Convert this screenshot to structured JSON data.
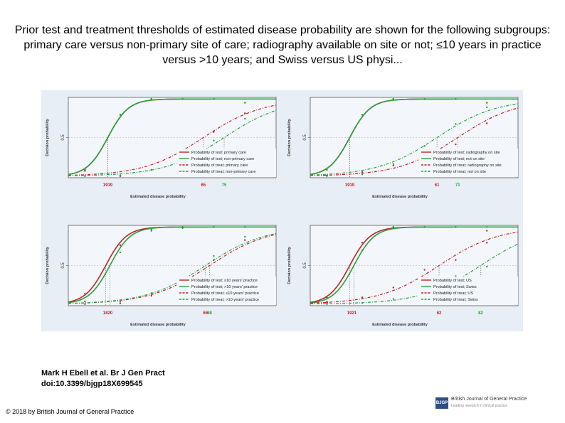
{
  "title": "Prior test and treatment thresholds of estimated disease probability are shown for the following subgroups: primary care versus non-primary site of care; radiography available on site or not; ≤10 years in practice versus >10 years; and Swiss versus US physi...",
  "citation": {
    "line1": "Mark H Ebell et al. Br J Gen Pract",
    "line2": "doi:10.3399/bjgp18X699545"
  },
  "copyright": "© 2018 by British Journal of General Practice",
  "logo": {
    "mark": "BJGP",
    "name": "British Journal of General Practice",
    "tagline": "Leading research in clinical practice"
  },
  "colors": {
    "red": "#c0222a",
    "green": "#27a13a",
    "background": "#e8eef5"
  },
  "chart_data": [
    {
      "type": "line",
      "title": "Primary care versus non-primary site of care",
      "xlabel": "Estimated disease probability",
      "ylabel": "Decision probability",
      "ytick": "0.5",
      "xlim": [
        0,
        100
      ],
      "ylim": [
        0,
        1
      ],
      "threshold_labels": [
        "19",
        "19",
        "65",
        "75"
      ],
      "threshold_values": [
        19,
        19,
        65,
        75
      ],
      "series": [
        {
          "name": "Probability of test; primary care",
          "color": "red",
          "style": "solid",
          "midpoint": 19,
          "slope": 0.2
        },
        {
          "name": "Probability of test; non-primary care",
          "color": "green",
          "style": "solid",
          "midpoint": 19,
          "slope": 0.2
        },
        {
          "name": "Probability of treat; primary care",
          "color": "red",
          "style": "dashed",
          "midpoint": 65,
          "slope": 0.07
        },
        {
          "name": "Probability of treat; non-primary care",
          "color": "green",
          "style": "dashed",
          "midpoint": 75,
          "slope": 0.07
        }
      ]
    },
    {
      "type": "line",
      "title": "Radiography available on site or not",
      "xlabel": "Estimated disease probability",
      "ylabel": "Decision probability",
      "ytick": "0.5",
      "xlim": [
        0,
        100
      ],
      "ylim": [
        0,
        1
      ],
      "threshold_labels": [
        "19",
        "19",
        "61",
        "71"
      ],
      "threshold_values": [
        19,
        19,
        61,
        71
      ],
      "series": [
        {
          "name": "Probability of test; radiography on site",
          "color": "red",
          "style": "solid",
          "midpoint": 19,
          "slope": 0.2
        },
        {
          "name": "Probability of test; not on site",
          "color": "green",
          "style": "solid",
          "midpoint": 19,
          "slope": 0.2
        },
        {
          "name": "Probability of treat; radiography on site",
          "color": "red",
          "style": "dashed",
          "midpoint": 71,
          "slope": 0.07
        },
        {
          "name": "Probability of treat; not on site",
          "color": "green",
          "style": "dashed",
          "midpoint": 61,
          "slope": 0.07
        }
      ]
    },
    {
      "type": "line",
      "title": "≤10 years in practice versus >10 years",
      "xlabel": "Estimated disease probability",
      "ylabel": "Decision probability",
      "ytick": "0.5",
      "xlim": [
        0,
        100
      ],
      "ylim": [
        0,
        1
      ],
      "threshold_labels": [
        "18",
        "20",
        "66",
        "68"
      ],
      "threshold_values": [
        18,
        20,
        66,
        68
      ],
      "series": [
        {
          "name": "Probability of test; ≤10 years' practice",
          "color": "red",
          "style": "solid",
          "midpoint": 18,
          "slope": 0.2
        },
        {
          "name": "Probability of test; >10 years' practice",
          "color": "green",
          "style": "solid",
          "midpoint": 20,
          "slope": 0.2
        },
        {
          "name": "Probability of treat; ≤10 years' practice",
          "color": "red",
          "style": "dashed",
          "midpoint": 68,
          "slope": 0.07
        },
        {
          "name": "Probability of treat; >10 years' practice",
          "color": "green",
          "style": "dashed",
          "midpoint": 66,
          "slope": 0.07
        }
      ]
    },
    {
      "type": "line",
      "title": "Swiss versus US physicians",
      "xlabel": "Estimated disease probability",
      "ylabel": "Decision probability",
      "ytick": "0.5",
      "xlim": [
        0,
        100
      ],
      "ylim": [
        0,
        1
      ],
      "threshold_labels": [
        "19",
        "21",
        "62",
        "82"
      ],
      "threshold_values": [
        19,
        21,
        62,
        82
      ],
      "series": [
        {
          "name": "Probability of test; US",
          "color": "red",
          "style": "solid",
          "midpoint": 19,
          "slope": 0.2
        },
        {
          "name": "Probability of test; Swiss",
          "color": "green",
          "style": "solid",
          "midpoint": 21,
          "slope": 0.2
        },
        {
          "name": "Probability of treat; US",
          "color": "red",
          "style": "dashed",
          "midpoint": 62,
          "slope": 0.07
        },
        {
          "name": "Probability of treat; Swiss",
          "color": "green",
          "style": "dashed",
          "midpoint": 82,
          "slope": 0.07
        }
      ]
    }
  ]
}
